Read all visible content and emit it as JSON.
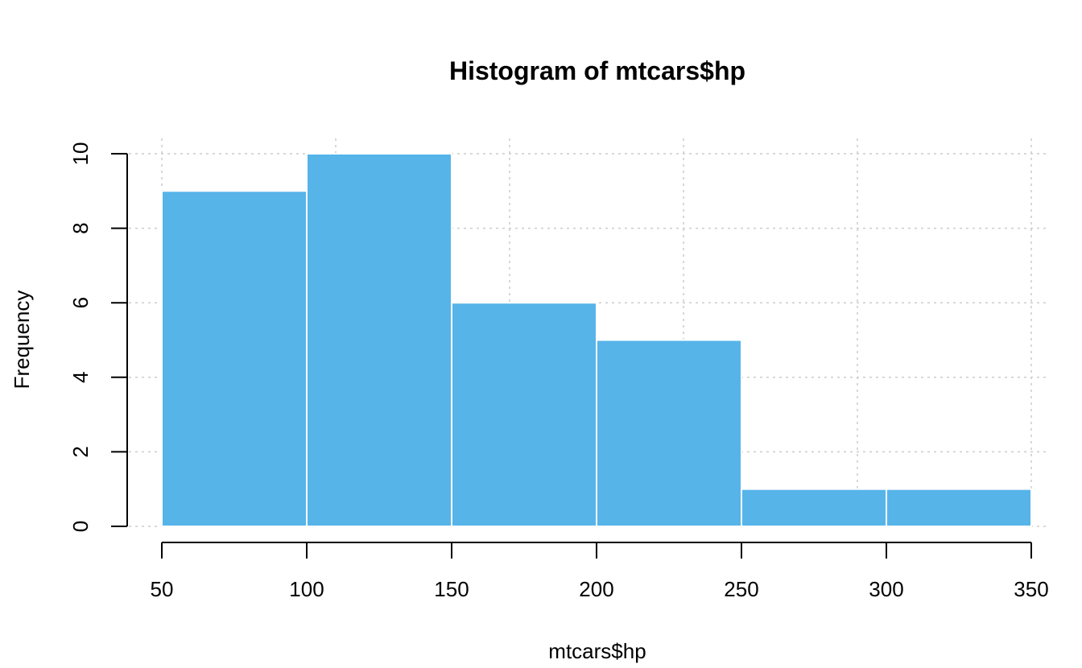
{
  "chart_data": {
    "type": "bar",
    "title": "Histogram of mtcars$hp",
    "xlabel": "mtcars$hp",
    "ylabel": "Frequency",
    "bins": [
      {
        "start": 50,
        "end": 100,
        "count": 9
      },
      {
        "start": 100,
        "end": 150,
        "count": 10
      },
      {
        "start": 150,
        "end": 200,
        "count": 6
      },
      {
        "start": 200,
        "end": 250,
        "count": 5
      },
      {
        "start": 250,
        "end": 300,
        "count": 1
      },
      {
        "start": 300,
        "end": 350,
        "count": 1
      }
    ],
    "xlim": [
      50,
      350
    ],
    "ylim": [
      0,
      10
    ],
    "x_ticks": [
      50,
      100,
      150,
      200,
      250,
      300,
      350
    ],
    "y_ticks": [
      0,
      2,
      4,
      6,
      8,
      10
    ],
    "grid": true,
    "grid_x": [
      50,
      110,
      170,
      230,
      290,
      350
    ],
    "grid_y": [
      0,
      2,
      4,
      6,
      8,
      10
    ],
    "bar_color": "#56B4E9",
    "grid_color": "#cccccc"
  }
}
